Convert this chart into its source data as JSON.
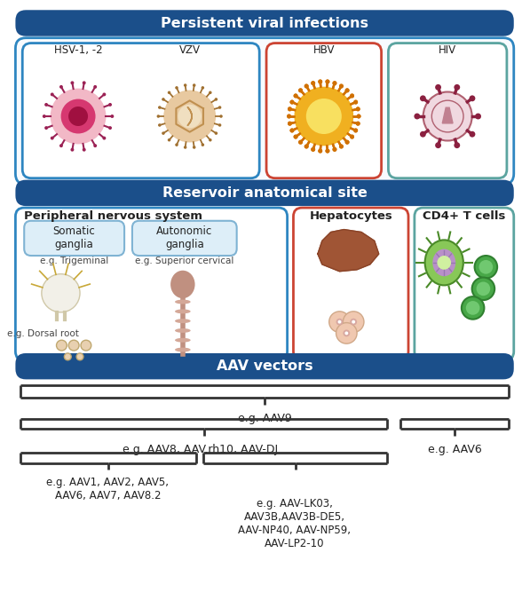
{
  "fig_width": 5.88,
  "fig_height": 6.85,
  "bg_color": "#ffffff",
  "dark_blue": "#1b4f8a",
  "box_blue_border": "#2e86c1",
  "box_orange_border": "#cc4433",
  "box_teal_border": "#5ba4a0",
  "section1_title": "Persistent viral infections",
  "section2_title": "Reservoir anatomical site",
  "section3_title": "AAV vectors",
  "virus_labels": [
    "HSV-1, -2",
    "VZV",
    "HBV",
    "HIV"
  ],
  "reservoir_labels": [
    "Peripheral nervous system",
    "Hepatocytes",
    "CD4+ T cells"
  ],
  "pns_sub1": "Somatic\nganglia",
  "pns_sub2": "Autonomic\nganglia",
  "pns_eg1": "e.g. Trigeminal",
  "pns_eg2": "e.g. Superior cervical",
  "pns_eg3": "e.g. Dorsal root",
  "aav_label1": "e.g. AAV9",
  "aav_label2": "e.g. AAV8, AAV.rh10, AAV-DJ",
  "aav_label3": "e.g. AAV6",
  "aav_label4": "e.g. AAV1, AAV2, AAV5,\nAAV6, AAV7, AAV8.2",
  "aav_label5": "e.g. AAV-LK03,\nAAV3B,AAV3B-DE5,\nAAV-NP40, AAV-NP59,\nAAV-LP2-10",
  "header_text_color": "#ffffff",
  "text_color": "#222222",
  "bracket_color": "#333333"
}
